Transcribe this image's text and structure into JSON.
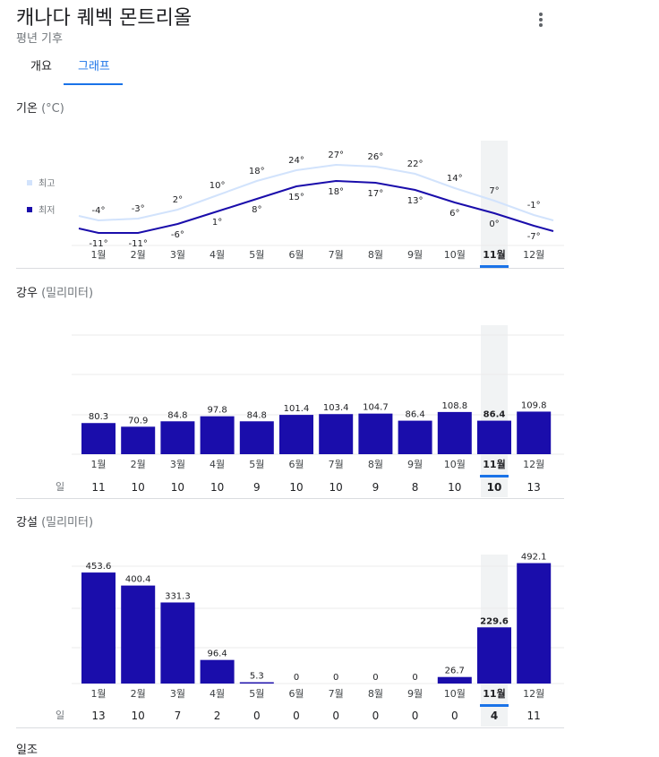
{
  "header": {
    "title": "캐나다 퀘벡 몬트리올",
    "subtitle": "평년 기후"
  },
  "tabs": [
    {
      "label": "개요",
      "selected": false
    },
    {
      "label": "그래프",
      "selected": true
    }
  ],
  "colors": {
    "accent": "#1a73e8",
    "bar": "#1a0dab",
    "low_line": "#1a0dab",
    "high_line": "#d2e3fc",
    "highlight": "#f1f3f4"
  },
  "selected_month": "11월",
  "months": [
    "1월",
    "2월",
    "3월",
    "4월",
    "5월",
    "6월",
    "7월",
    "8월",
    "9월",
    "10월",
    "11월",
    "12월"
  ],
  "temperature": {
    "title": "기온",
    "unit": "(°C)",
    "legend_high": "최고",
    "legend_low": "최저"
  },
  "rain": {
    "title": "강우",
    "unit": "(밀리미터)",
    "days_label": "일"
  },
  "snow": {
    "title": "강설",
    "unit": "(밀리미터)",
    "days_label": "일"
  },
  "sunshine": {
    "title": "일조"
  },
  "chart_data": [
    {
      "type": "line",
      "x": [
        "1월",
        "2월",
        "3월",
        "4월",
        "5월",
        "6월",
        "7월",
        "8월",
        "9월",
        "10월",
        "11월",
        "12월"
      ],
      "series": [
        {
          "name": "최고",
          "values": [
            -4,
            -3,
            2,
            10,
            18,
            24,
            27,
            26,
            22,
            14,
            7,
            -1
          ]
        },
        {
          "name": "최저",
          "values": [
            -11,
            -11,
            -6,
            1,
            8,
            15,
            18,
            17,
            13,
            6,
            0,
            -7
          ]
        }
      ],
      "title": "기온",
      "ylabel": "(°C)"
    },
    {
      "type": "bar",
      "categories": [
        "1월",
        "2월",
        "3월",
        "4월",
        "5월",
        "6월",
        "7월",
        "8월",
        "9월",
        "10월",
        "11월",
        "12월"
      ],
      "values": [
        80.3,
        70.9,
        84.8,
        97.8,
        84.8,
        101.4,
        103.4,
        104.7,
        86.4,
        108.8,
        86.4,
        109.8
      ],
      "days": [
        11,
        10,
        10,
        10,
        9,
        10,
        10,
        9,
        8,
        10,
        10,
        13
      ],
      "title": "강우",
      "ylabel": "(밀리미터)",
      "ylim": [
        0,
        300
      ],
      "grid": true
    },
    {
      "type": "bar",
      "categories": [
        "1월",
        "2월",
        "3월",
        "4월",
        "5월",
        "6월",
        "7월",
        "8월",
        "9월",
        "10월",
        "11월",
        "12월"
      ],
      "values": [
        453.6,
        400.4,
        331.3,
        96.4,
        5.3,
        0,
        0,
        0,
        0,
        26.7,
        229.6,
        492.1
      ],
      "days": [
        13,
        10,
        7,
        2,
        0,
        0,
        0,
        0,
        0,
        0,
        4,
        11
      ],
      "title": "강설",
      "ylabel": "(밀리미터)",
      "ylim": [
        0,
        600
      ],
      "grid": true
    }
  ]
}
